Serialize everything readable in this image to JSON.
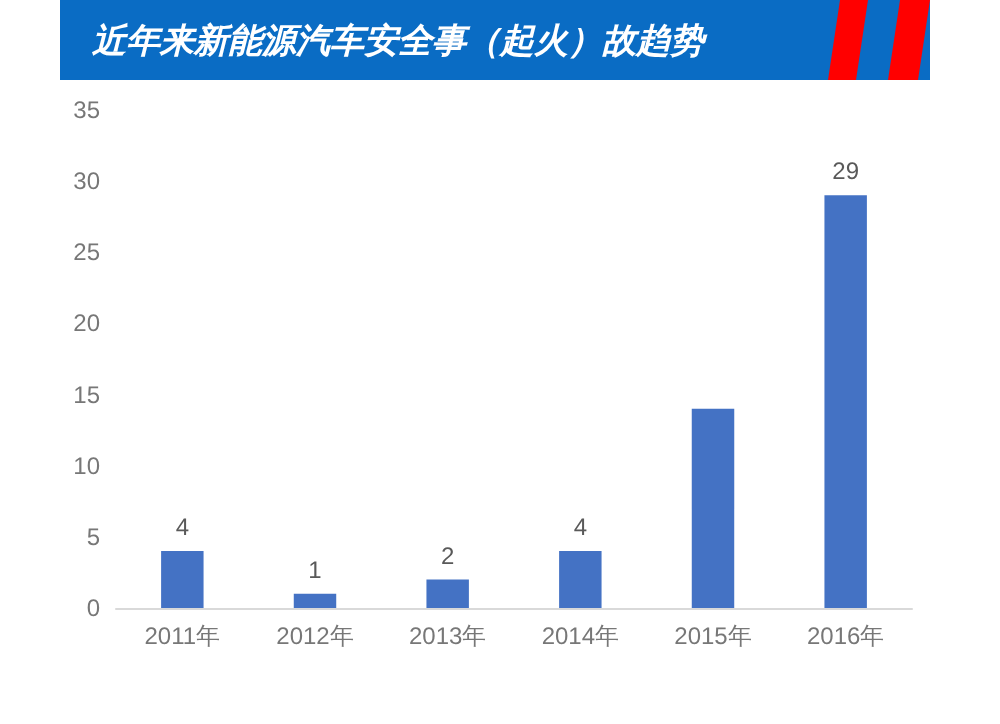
{
  "chart_data": {
    "type": "bar",
    "title": "近年来新能源汽车安全事（起火）故趋势",
    "categories": [
      "2011年",
      "2012年",
      "2013年",
      "2014年",
      "2015年",
      "2016年"
    ],
    "values": [
      4,
      1,
      2,
      4,
      14,
      29
    ],
    "value_labels": [
      "4",
      "1",
      "2",
      "4",
      null,
      "29"
    ],
    "color": "#4472c4",
    "ylim": [
      0,
      35
    ],
    "yticks": [
      0,
      5,
      10,
      15,
      20,
      25,
      30,
      35
    ],
    "grid": false
  }
}
